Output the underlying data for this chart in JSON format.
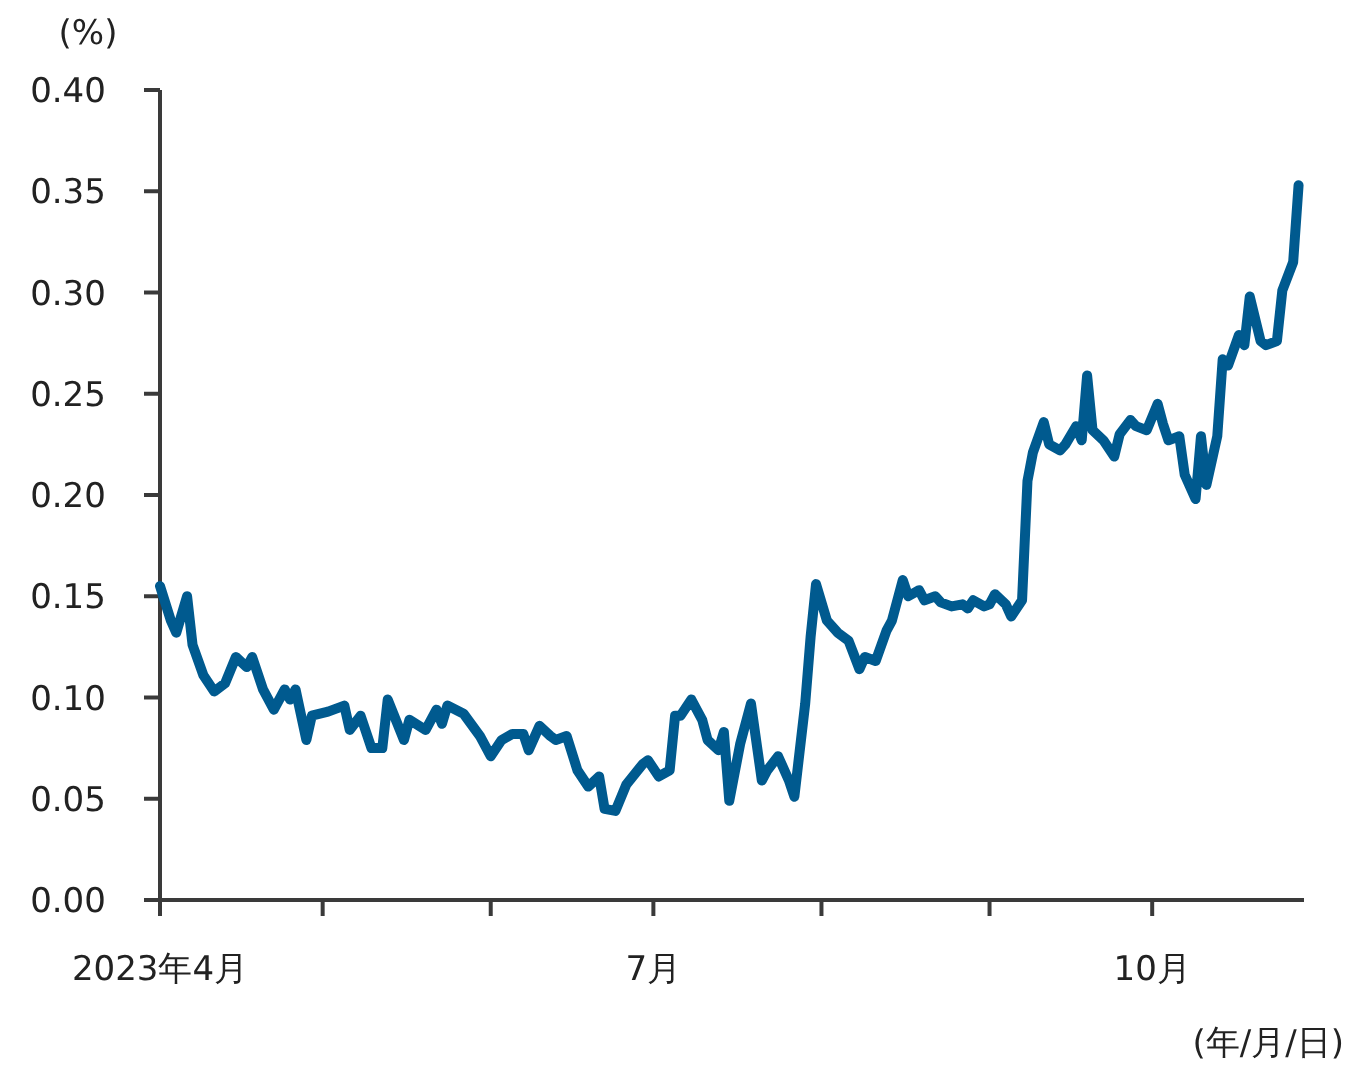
{
  "chart_data": {
    "type": "line",
    "ylabel": "(%)",
    "xlabel": "(年/月/日)",
    "xlim": [
      "2023-04-01",
      "2023-10-29"
    ],
    "xticks": [
      {
        "value": "2023-04-01",
        "label": "2023年4月"
      },
      {
        "value": "2023-05-01",
        "label": null
      },
      {
        "value": "2023-06-01",
        "label": null
      },
      {
        "value": "2023-07-01",
        "label": "7月"
      },
      {
        "value": "2023-08-01",
        "label": null
      },
      {
        "value": "2023-09-01",
        "label": null
      },
      {
        "value": "2023-10-01",
        "label": "10月"
      }
    ],
    "ylim": [
      0,
      0.4
    ],
    "yticks": [
      {
        "value": 0,
        "label": "0.00"
      },
      {
        "value": 0.05,
        "label": "0.05"
      },
      {
        "value": 0.1,
        "label": "0.10"
      },
      {
        "value": 0.15,
        "label": "0.15"
      },
      {
        "value": 0.2,
        "label": "0.20"
      },
      {
        "value": 0.25,
        "label": "0.25"
      },
      {
        "value": 0.3,
        "label": "0.30"
      },
      {
        "value": 0.35,
        "label": "0.35"
      },
      {
        "value": 0.4,
        "label": "0.40"
      }
    ],
    "grid": false,
    "marker": "none",
    "line_style": "solid",
    "x": [
      "2023-04-01",
      "2023-04-03",
      "2023-04-04",
      "2023-04-06",
      "2023-04-07",
      "2023-04-09",
      "2023-04-11",
      "2023-04-13",
      "2023-04-15",
      "2023-04-17",
      "2023-04-18",
      "2023-04-20",
      "2023-04-22",
      "2023-04-24",
      "2023-04-25",
      "2023-04-26",
      "2023-04-28",
      "2023-04-29",
      "2023-05-02",
      "2023-05-05",
      "2023-05-06",
      "2023-05-08",
      "2023-05-10",
      "2023-05-12",
      "2023-05-13",
      "2023-05-16",
      "2023-05-17",
      "2023-05-20",
      "2023-05-22",
      "2023-05-23",
      "2023-05-24",
      "2023-05-27",
      "2023-05-30",
      "2023-06-01",
      "2023-06-03",
      "2023-06-05",
      "2023-06-07",
      "2023-06-08",
      "2023-06-10",
      "2023-06-12",
      "2023-06-13",
      "2023-06-15",
      "2023-06-17",
      "2023-06-19",
      "2023-06-21",
      "2023-06-22",
      "2023-06-24",
      "2023-06-26",
      "2023-06-29",
      "2023-06-30",
      "2023-07-02",
      "2023-07-04",
      "2023-07-05",
      "2023-07-06",
      "2023-07-08",
      "2023-07-10",
      "2023-07-11",
      "2023-07-13",
      "2023-07-14",
      "2023-07-15",
      "2023-07-17",
      "2023-07-19",
      "2023-07-21",
      "2023-07-22",
      "2023-07-24",
      "2023-07-26",
      "2023-07-27",
      "2023-07-29",
      "2023-07-30",
      "2023-07-31",
      "2023-08-02",
      "2023-08-04",
      "2023-08-06",
      "2023-08-08",
      "2023-08-09",
      "2023-08-11",
      "2023-08-13",
      "2023-08-14",
      "2023-08-16",
      "2023-08-17",
      "2023-08-19",
      "2023-08-20",
      "2023-08-22",
      "2023-08-23",
      "2023-08-25",
      "2023-08-27",
      "2023-08-28",
      "2023-08-29",
      "2023-08-31",
      "2023-09-01",
      "2023-09-02",
      "2023-09-04",
      "2023-09-05",
      "2023-09-07",
      "2023-09-08",
      "2023-09-09",
      "2023-09-11",
      "2023-09-12",
      "2023-09-14",
      "2023-09-15",
      "2023-09-17",
      "2023-09-18",
      "2023-09-19",
      "2023-09-20",
      "2023-09-22",
      "2023-09-24",
      "2023-09-25",
      "2023-09-27",
      "2023-09-28",
      "2023-09-30",
      "2023-10-02",
      "2023-10-03",
      "2023-10-04",
      "2023-10-06",
      "2023-10-07",
      "2023-10-09",
      "2023-10-10",
      "2023-10-11",
      "2023-10-13",
      "2023-10-14",
      "2023-10-15",
      "2023-10-17",
      "2023-10-18",
      "2023-10-19",
      "2023-10-21",
      "2023-10-22",
      "2023-10-24",
      "2023-10-25",
      "2023-10-27",
      "2023-10-28"
    ],
    "series": [
      {
        "color": "#005a8f",
        "values": [
          0.155,
          0.138,
          0.132,
          0.15,
          0.126,
          0.111,
          0.103,
          0.107,
          0.12,
          0.115,
          0.12,
          0.104,
          0.094,
          0.104,
          0.099,
          0.104,
          0.079,
          0.091,
          0.093,
          0.096,
          0.084,
          0.091,
          0.075,
          0.075,
          0.099,
          0.079,
          0.089,
          0.084,
          0.094,
          0.087,
          0.096,
          0.092,
          0.081,
          0.071,
          0.079,
          0.082,
          0.082,
          0.074,
          0.086,
          0.081,
          0.079,
          0.081,
          0.064,
          0.056,
          0.061,
          0.045,
          0.044,
          0.057,
          0.067,
          0.069,
          0.061,
          0.064,
          0.091,
          0.091,
          0.099,
          0.089,
          0.079,
          0.074,
          0.083,
          0.049,
          0.077,
          0.097,
          0.059,
          0.064,
          0.071,
          0.059,
          0.051,
          0.097,
          0.13,
          0.156,
          0.138,
          0.132,
          0.128,
          0.114,
          0.12,
          0.118,
          0.133,
          0.138,
          0.158,
          0.15,
          0.153,
          0.148,
          0.15,
          0.147,
          0.145,
          0.146,
          0.144,
          0.148,
          0.145,
          0.146,
          0.151,
          0.146,
          0.14,
          0.148,
          0.207,
          0.221,
          0.236,
          0.225,
          0.222,
          0.225,
          0.234,
          0.227,
          0.259,
          0.232,
          0.227,
          0.219,
          0.23,
          0.237,
          0.234,
          0.232,
          0.245,
          0.235,
          0.227,
          0.229,
          0.21,
          0.198,
          0.229,
          0.205,
          0.229,
          0.267,
          0.264,
          0.279,
          0.274,
          0.298,
          0.276,
          0.274,
          0.276,
          0.301,
          0.315,
          0.353
        ]
      }
    ]
  }
}
